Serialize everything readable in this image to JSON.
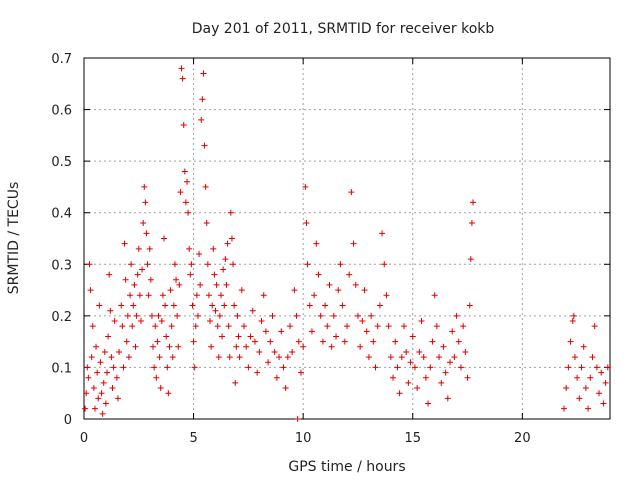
{
  "chart_data": {
    "type": "scatter",
    "title": "Day 201 of 2011, SRMTID for receiver kokb",
    "xlabel": "GPS time / hours",
    "ylabel": "SRMTID / TECUs",
    "xlim": [
      0,
      24
    ],
    "ylim": [
      0,
      0.7
    ],
    "xticks": [
      0,
      5,
      10,
      15,
      20
    ],
    "xtick_labels": [
      "0",
      "5",
      "10",
      "15",
      "20"
    ],
    "yticks": [
      0,
      0.1,
      0.2,
      0.3,
      0.4,
      0.5,
      0.6,
      0.7
    ],
    "ytick_labels": [
      "0",
      "0.1",
      "0.2",
      "0.3",
      "0.4",
      "0.5",
      "0.6",
      "0.7"
    ],
    "grid": true,
    "marker": "plus",
    "marker_color": "#e00000",
    "series": [
      {
        "name": "kokb",
        "points": [
          [
            0.05,
            0.02
          ],
          [
            0.1,
            0.05
          ],
          [
            0.15,
            0.1
          ],
          [
            0.2,
            0.08
          ],
          [
            0.25,
            0.3
          ],
          [
            0.3,
            0.25
          ],
          [
            0.35,
            0.12
          ],
          [
            0.4,
            0.18
          ],
          [
            0.45,
            0.06
          ],
          [
            0.5,
            0.02
          ],
          [
            0.55,
            0.14
          ],
          [
            0.6,
            0.09
          ],
          [
            0.65,
            0.04
          ],
          [
            0.7,
            0.22
          ],
          [
            0.75,
            0.11
          ],
          [
            0.8,
            0.05
          ],
          [
            0.85,
            0.01
          ],
          [
            0.9,
            0.07
          ],
          [
            0.95,
            0.13
          ],
          [
            1.0,
            0.03
          ],
          [
            1.05,
            0.09
          ],
          [
            1.1,
            0.16
          ],
          [
            1.15,
            0.28
          ],
          [
            1.2,
            0.21
          ],
          [
            1.25,
            0.12
          ],
          [
            1.3,
            0.06
          ],
          [
            1.35,
            0.1
          ],
          [
            1.4,
            0.19
          ],
          [
            1.5,
            0.08
          ],
          [
            1.55,
            0.04
          ],
          [
            1.6,
            0.13
          ],
          [
            1.7,
            0.22
          ],
          [
            1.75,
            0.18
          ],
          [
            1.8,
            0.1
          ],
          [
            1.85,
            0.34
          ],
          [
            1.9,
            0.27
          ],
          [
            1.95,
            0.15
          ],
          [
            2.0,
            0.2
          ],
          [
            2.05,
            0.12
          ],
          [
            2.1,
            0.24
          ],
          [
            2.15,
            0.3
          ],
          [
            2.2,
            0.18
          ],
          [
            2.25,
            0.22
          ],
          [
            2.3,
            0.26
          ],
          [
            2.35,
            0.14
          ],
          [
            2.4,
            0.2
          ],
          [
            2.45,
            0.28
          ],
          [
            2.5,
            0.33
          ],
          [
            2.55,
            0.24
          ],
          [
            2.6,
            0.19
          ],
          [
            2.65,
            0.29
          ],
          [
            2.7,
            0.38
          ],
          [
            2.75,
            0.45
          ],
          [
            2.8,
            0.42
          ],
          [
            2.85,
            0.36
          ],
          [
            2.9,
            0.3
          ],
          [
            2.95,
            0.24
          ],
          [
            3.0,
            0.33
          ],
          [
            3.05,
            0.27
          ],
          [
            3.1,
            0.2
          ],
          [
            3.15,
            0.14
          ],
          [
            3.2,
            0.1
          ],
          [
            3.25,
            0.18
          ],
          [
            3.3,
            0.08
          ],
          [
            3.35,
            0.15
          ],
          [
            3.4,
            0.2
          ],
          [
            3.45,
            0.12
          ],
          [
            3.5,
            0.06
          ],
          [
            3.55,
            0.19
          ],
          [
            3.6,
            0.24
          ],
          [
            3.65,
            0.35
          ],
          [
            3.7,
            0.22
          ],
          [
            3.75,
            0.16
          ],
          [
            3.8,
            0.1
          ],
          [
            3.85,
            0.05
          ],
          [
            3.9,
            0.14
          ],
          [
            3.95,
            0.25
          ],
          [
            4.0,
            0.18
          ],
          [
            4.05,
            0.12
          ],
          [
            4.1,
            0.22
          ],
          [
            4.15,
            0.3
          ],
          [
            4.2,
            0.27
          ],
          [
            4.25,
            0.2
          ],
          [
            4.3,
            0.14
          ],
          [
            4.35,
            0.26
          ],
          [
            4.4,
            0.44
          ],
          [
            4.45,
            0.68
          ],
          [
            4.5,
            0.66
          ],
          [
            4.55,
            0.57
          ],
          [
            4.6,
            0.48
          ],
          [
            4.65,
            0.42
          ],
          [
            4.7,
            0.46
          ],
          [
            4.75,
            0.4
          ],
          [
            4.8,
            0.33
          ],
          [
            4.85,
            0.28
          ],
          [
            4.9,
            0.3
          ],
          [
            4.95,
            0.22
          ],
          [
            5.0,
            0.15
          ],
          [
            5.05,
            0.1
          ],
          [
            5.1,
            0.18
          ],
          [
            5.15,
            0.24
          ],
          [
            5.2,
            0.2
          ],
          [
            5.25,
            0.32
          ],
          [
            5.3,
            0.26
          ],
          [
            5.35,
            0.58
          ],
          [
            5.4,
            0.62
          ],
          [
            5.45,
            0.67
          ],
          [
            5.5,
            0.53
          ],
          [
            5.55,
            0.45
          ],
          [
            5.6,
            0.38
          ],
          [
            5.65,
            0.3
          ],
          [
            5.7,
            0.24
          ],
          [
            5.75,
            0.19
          ],
          [
            5.8,
            0.14
          ],
          [
            5.85,
            0.22
          ],
          [
            5.9,
            0.33
          ],
          [
            5.95,
            0.28
          ],
          [
            6.0,
            0.21
          ],
          [
            6.05,
            0.26
          ],
          [
            6.1,
            0.18
          ],
          [
            6.15,
            0.12
          ],
          [
            6.2,
            0.2
          ],
          [
            6.25,
            0.24
          ],
          [
            6.3,
            0.16
          ],
          [
            6.35,
            0.29
          ],
          [
            6.4,
            0.22
          ],
          [
            6.45,
            0.31
          ],
          [
            6.5,
            0.26
          ],
          [
            6.55,
            0.34
          ],
          [
            6.6,
            0.18
          ],
          [
            6.65,
            0.12
          ],
          [
            6.7,
            0.4
          ],
          [
            6.75,
            0.35
          ],
          [
            6.8,
            0.3
          ],
          [
            6.85,
            0.22
          ],
          [
            6.9,
            0.07
          ],
          [
            6.95,
            0.14
          ],
          [
            7.0,
            0.2
          ],
          [
            7.05,
            0.16
          ],
          [
            7.1,
            0.12
          ],
          [
            7.2,
            0.25
          ],
          [
            7.3,
            0.18
          ],
          [
            7.4,
            0.14
          ],
          [
            7.5,
            0.1
          ],
          [
            7.6,
            0.16
          ],
          [
            7.7,
            0.21
          ],
          [
            7.8,
            0.15
          ],
          [
            7.9,
            0.09
          ],
          [
            8.0,
            0.13
          ],
          [
            8.1,
            0.19
          ],
          [
            8.2,
            0.24
          ],
          [
            8.3,
            0.17
          ],
          [
            8.4,
            0.11
          ],
          [
            8.5,
            0.15
          ],
          [
            8.6,
            0.2
          ],
          [
            8.7,
            0.13
          ],
          [
            8.8,
            0.08
          ],
          [
            8.9,
            0.12
          ],
          [
            9.0,
            0.17
          ],
          [
            9.1,
            0.1
          ],
          [
            9.2,
            0.06
          ],
          [
            9.3,
            0.12
          ],
          [
            9.4,
            0.18
          ],
          [
            9.5,
            0.13
          ],
          [
            9.6,
            0.25
          ],
          [
            9.7,
            0.2
          ],
          [
            9.75,
            0.0
          ],
          [
            9.8,
            0.15
          ],
          [
            9.9,
            0.09
          ],
          [
            10.0,
            0.14
          ],
          [
            10.1,
            0.45
          ],
          [
            10.15,
            0.38
          ],
          [
            10.2,
            0.3
          ],
          [
            10.3,
            0.22
          ],
          [
            10.4,
            0.17
          ],
          [
            10.5,
            0.24
          ],
          [
            10.6,
            0.34
          ],
          [
            10.7,
            0.28
          ],
          [
            10.8,
            0.2
          ],
          [
            10.9,
            0.15
          ],
          [
            11.0,
            0.22
          ],
          [
            11.1,
            0.18
          ],
          [
            11.2,
            0.26
          ],
          [
            11.3,
            0.14
          ],
          [
            11.4,
            0.2
          ],
          [
            11.5,
            0.16
          ],
          [
            11.6,
            0.25
          ],
          [
            11.7,
            0.3
          ],
          [
            11.8,
            0.22
          ],
          [
            11.9,
            0.15
          ],
          [
            12.0,
            0.18
          ],
          [
            12.1,
            0.28
          ],
          [
            12.2,
            0.44
          ],
          [
            12.3,
            0.34
          ],
          [
            12.4,
            0.26
          ],
          [
            12.5,
            0.2
          ],
          [
            12.6,
            0.14
          ],
          [
            12.7,
            0.19
          ],
          [
            12.8,
            0.25
          ],
          [
            12.9,
            0.17
          ],
          [
            13.0,
            0.12
          ],
          [
            13.1,
            0.2
          ],
          [
            13.2,
            0.15
          ],
          [
            13.3,
            0.1
          ],
          [
            13.4,
            0.18
          ],
          [
            13.5,
            0.22
          ],
          [
            13.6,
            0.36
          ],
          [
            13.7,
            0.3
          ],
          [
            13.8,
            0.24
          ],
          [
            13.9,
            0.18
          ],
          [
            14.0,
            0.12
          ],
          [
            14.1,
            0.08
          ],
          [
            14.2,
            0.15
          ],
          [
            14.3,
            0.1
          ],
          [
            14.4,
            0.05
          ],
          [
            14.5,
            0.12
          ],
          [
            14.6,
            0.18
          ],
          [
            14.7,
            0.13
          ],
          [
            14.8,
            0.07
          ],
          [
            14.9,
            0.11
          ],
          [
            15.0,
            0.16
          ],
          [
            15.1,
            0.1
          ],
          [
            15.2,
            0.06
          ],
          [
            15.3,
            0.13
          ],
          [
            15.4,
            0.19
          ],
          [
            15.5,
            0.12
          ],
          [
            15.6,
            0.08
          ],
          [
            15.7,
            0.03
          ],
          [
            15.8,
            0.1
          ],
          [
            15.9,
            0.15
          ],
          [
            16.0,
            0.24
          ],
          [
            16.1,
            0.18
          ],
          [
            16.2,
            0.12
          ],
          [
            16.3,
            0.07
          ],
          [
            16.4,
            0.14
          ],
          [
            16.5,
            0.09
          ],
          [
            16.6,
            0.04
          ],
          [
            16.7,
            0.11
          ],
          [
            16.8,
            0.17
          ],
          [
            16.9,
            0.12
          ],
          [
            17.0,
            0.2
          ],
          [
            17.1,
            0.15
          ],
          [
            17.2,
            0.1
          ],
          [
            17.3,
            0.18
          ],
          [
            17.4,
            0.13
          ],
          [
            17.5,
            0.08
          ],
          [
            17.6,
            0.22
          ],
          [
            17.65,
            0.31
          ],
          [
            17.7,
            0.38
          ],
          [
            17.75,
            0.42
          ],
          [
            21.9,
            0.02
          ],
          [
            22.0,
            0.06
          ],
          [
            22.1,
            0.1
          ],
          [
            22.2,
            0.15
          ],
          [
            22.3,
            0.19
          ],
          [
            22.35,
            0.2
          ],
          [
            22.4,
            0.12
          ],
          [
            22.5,
            0.08
          ],
          [
            22.6,
            0.04
          ],
          [
            22.7,
            0.1
          ],
          [
            22.8,
            0.14
          ],
          [
            22.9,
            0.06
          ],
          [
            23.0,
            0.02
          ],
          [
            23.1,
            0.08
          ],
          [
            23.2,
            0.12
          ],
          [
            23.3,
            0.18
          ],
          [
            23.4,
            0.1
          ],
          [
            23.5,
            0.05
          ],
          [
            23.6,
            0.09
          ],
          [
            23.7,
            0.03
          ],
          [
            23.8,
            0.07
          ],
          [
            23.9,
            0.1
          ]
        ]
      }
    ]
  }
}
